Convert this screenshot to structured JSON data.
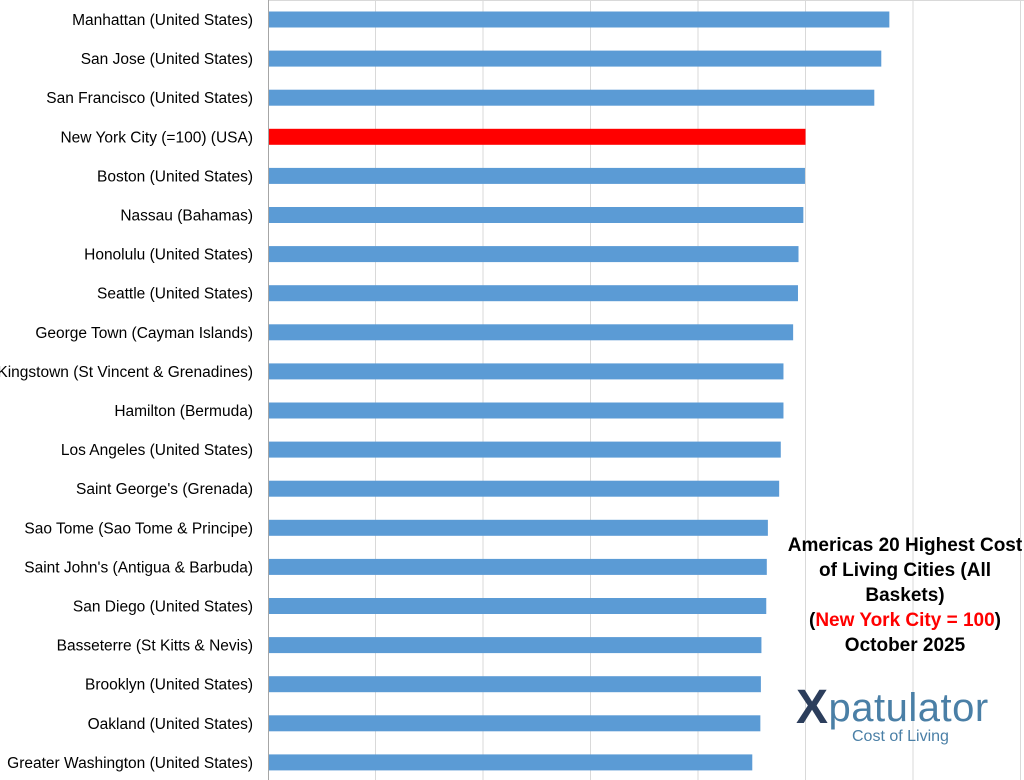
{
  "chart_data": {
    "type": "bar",
    "orientation": "horizontal",
    "categories": [
      "Manhattan (United States)",
      "San Jose (United States)",
      "San Francisco (United States)",
      "New York City (=100) (USA)",
      "Boston (United States)",
      "Nassau (Bahamas)",
      "Honolulu (United States)",
      "Seattle (United States)",
      "George Town (Cayman Islands)",
      "Kingstown (St Vincent & Grenadines)",
      "Hamilton (Bermuda)",
      "Los Angeles (United States)",
      "Saint George's (Grenada)",
      "Sao Tome (Sao Tome & Principe)",
      "Saint John's (Antigua & Barbuda)",
      "San Diego (United States)",
      "Basseterre (St Kitts & Nevis)",
      "Brooklyn (United States)",
      "Oakland (United States)",
      "Greater Washington (United States)"
    ],
    "values": [
      115.6,
      114.1,
      112.8,
      100,
      99.9,
      99.6,
      98.7,
      98.6,
      97.7,
      95.9,
      95.9,
      95.4,
      95.1,
      93.0,
      92.8,
      92.7,
      91.8,
      91.7,
      91.6,
      90.1
    ],
    "highlight_index": 3,
    "xlim": [
      0,
      140
    ],
    "grid": true,
    "colors": {
      "bar": "#5b9bd5",
      "highlight": "#ff0000"
    },
    "title": {
      "line1": "Americas 20 Highest Cost",
      "line2": "of Living Cities (All",
      "line3": "Baskets)",
      "paren_open": "(",
      "highlight": "New York City = 100",
      "paren_close": ")",
      "line5": "October 2025"
    }
  },
  "logo": {
    "x": "X",
    "name": "patulator",
    "tagline": "Cost of Living"
  }
}
